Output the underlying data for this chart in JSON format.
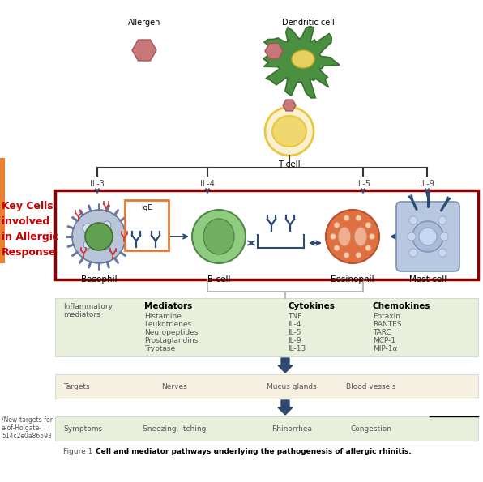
{
  "bg_color": "#ffffff",
  "left_label_lines": [
    "Key Cells",
    "involved",
    "in Allergic",
    "Response"
  ],
  "il_labels": [
    "IL-3",
    "IL-4",
    "IL-5",
    "IL-9"
  ],
  "cell_labels": [
    "Basophil",
    "B cell",
    "Eosinophil",
    "Mast cell"
  ],
  "top_labels": [
    "Allergen",
    "Dendritic cell",
    "T cell"
  ],
  "mediators_header": "Mediators",
  "mediators_items": [
    "Histamine",
    "Leukotrienes",
    "Neuropeptides",
    "Prostaglandins",
    "Tryptase"
  ],
  "cytokines_header": "Cytokines",
  "cytokines_items": [
    "TNF",
    "IL-4",
    "IL-5",
    "IL-9",
    "IL-13"
  ],
  "chemokines_header": "Chemokines",
  "chemokines_items": [
    "Eotaxin",
    "RANTES",
    "TARC",
    "MCP-1",
    "MIP-1α"
  ],
  "infl_med_label": "Inflammatory\nmediators",
  "targets_label": "Targets",
  "targets_items": [
    "Nerves",
    "Mucus glands",
    "Blood vessels"
  ],
  "symptoms_label": "Symptoms",
  "symptoms_items": [
    "Sneezing, itching",
    "Rhinorrhea",
    "Congestion"
  ],
  "watermark_lines": [
    "/New-targets-for-",
    "e-of-Holgate-",
    "514c2e0a86593"
  ],
  "red_box_color": "#8b0000",
  "orange_box_color": "#e07830",
  "arrow_color": "#2d4a6e",
  "line_color": "#2d4a6e",
  "table_green_bg": "#e8f0dc",
  "table_cream_bg": "#f5f0e0",
  "key_cells_color": "#cc0000",
  "dc_green": "#4a9040",
  "dc_yellow": "#e8d060",
  "tcell_yellow": "#f0d870",
  "tcell_rim": "#e8c840",
  "allergen_color": "#c87878",
  "allergen_edge": "#a05858",
  "basophil_outer": "#b8c4d8",
  "basophil_edge": "#6878a0",
  "basophil_nucleus": "#60a050",
  "bcell_color": "#90cc80",
  "bcell_edge": "#508848",
  "bcell_nucleus": "#508848",
  "eosi_color": "#e07040",
  "eosi_edge": "#b85030",
  "mast_color": "#b8c8e0",
  "mast_edge": "#7890b0",
  "mast_nucleus": "#c8d8f0",
  "antibody_color": "#2a4a78"
}
